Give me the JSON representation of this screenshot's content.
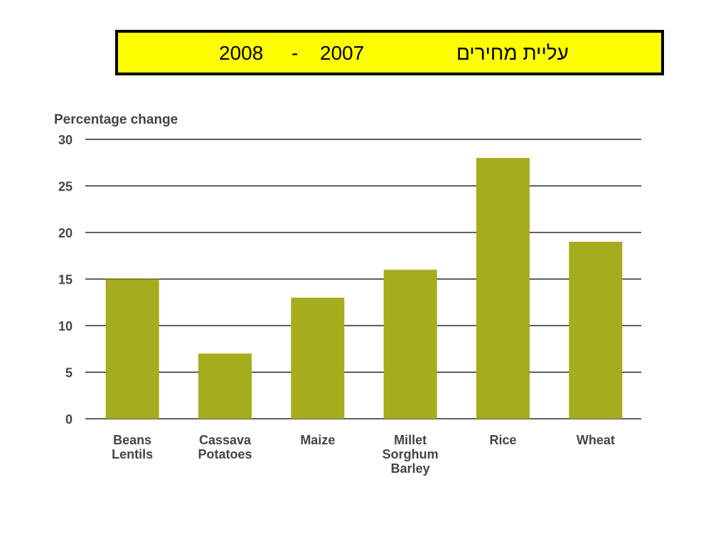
{
  "slide_title": {
    "hebrew": "עליית מחירים",
    "year_start": "2007",
    "dash": "-",
    "year_end": "2008"
  },
  "colors": {
    "bar": "#a5ac1d",
    "title_bg": "#ffff00",
    "grid": "#000000"
  },
  "chart_data": {
    "type": "bar",
    "title": "",
    "xlabel": "",
    "ylabel": "Percentage change",
    "ylim": [
      0,
      30
    ],
    "yticks": [
      0,
      5,
      10,
      15,
      20,
      25,
      30
    ],
    "grid": true,
    "categories": [
      [
        "Beans",
        "Lentils"
      ],
      [
        "Cassava",
        "Potatoes"
      ],
      [
        "Maize"
      ],
      [
        "Millet",
        "Sorghum",
        "Barley"
      ],
      [
        "Rice"
      ],
      [
        "Wheat"
      ]
    ],
    "values": [
      15,
      7,
      13,
      16,
      28,
      19
    ]
  }
}
